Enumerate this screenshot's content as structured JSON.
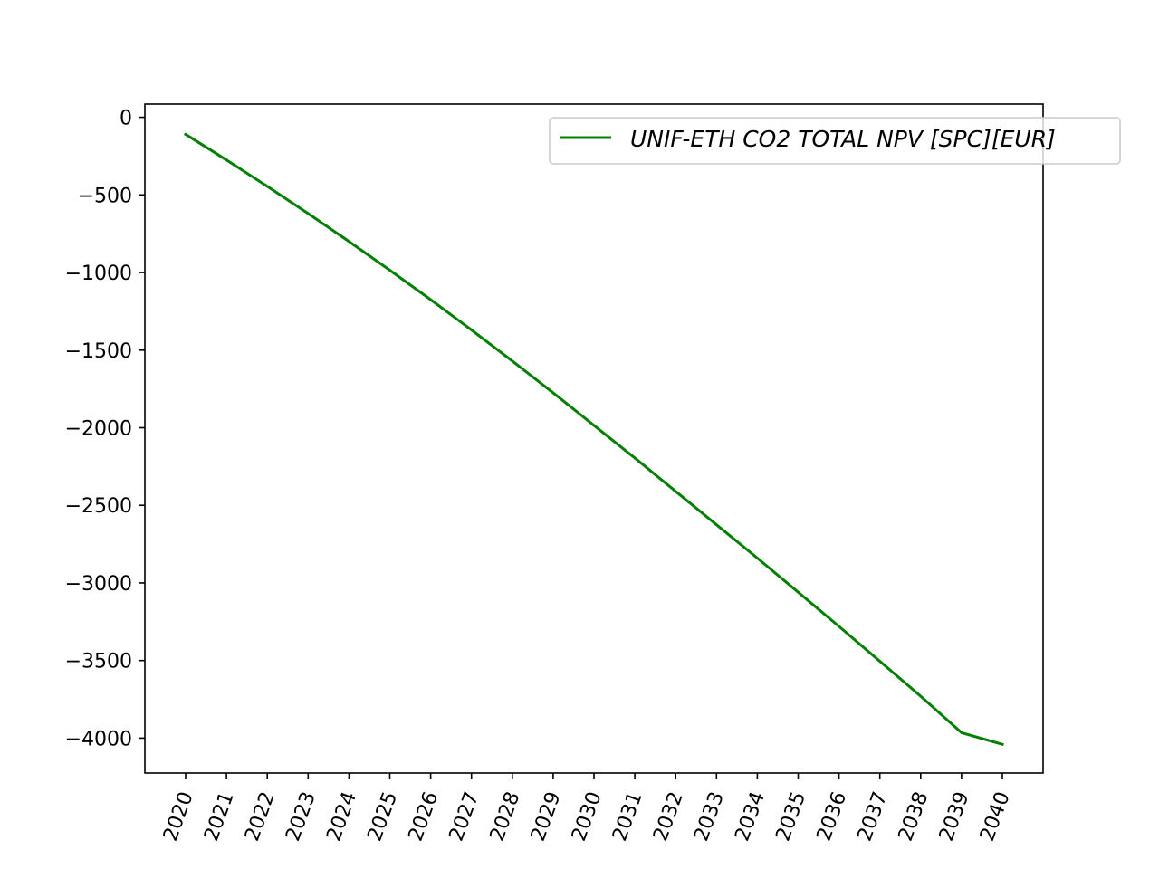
{
  "chart_data": {
    "type": "line",
    "title": "",
    "xlabel": "",
    "ylabel": "",
    "x": [
      "2020",
      "2021",
      "2022",
      "2023",
      "2024",
      "2025",
      "2026",
      "2027",
      "2028",
      "2029",
      "2030",
      "2031",
      "2032",
      "2033",
      "2034",
      "2035",
      "2036",
      "2037",
      "2038",
      "2039",
      "2040"
    ],
    "series": [
      {
        "name": "UNIF-ETH CO2 TOTAL NPV [SPC][EUR]",
        "color": "#008000",
        "values": [
          -110,
          -275,
          -445,
          -620,
          -800,
          -985,
          -1175,
          -1370,
          -1570,
          -1775,
          -1985,
          -2195,
          -2410,
          -2625,
          -2840,
          -3060,
          -3280,
          -3505,
          -3730,
          -3965,
          -4040
        ]
      }
    ],
    "yticks": [
      0,
      -500,
      -1000,
      -1500,
      -2000,
      -2500,
      -3000,
      -3500,
      -4000
    ],
    "ytick_labels": [
      "0",
      "−500",
      "−1000",
      "−1500",
      "−2000",
      "−2500",
      "−3000",
      "−3500",
      "−4000"
    ],
    "ylim": [
      -4225,
      85
    ],
    "xtick_rotation": -70,
    "grid": false,
    "legend_position": "top-right"
  }
}
